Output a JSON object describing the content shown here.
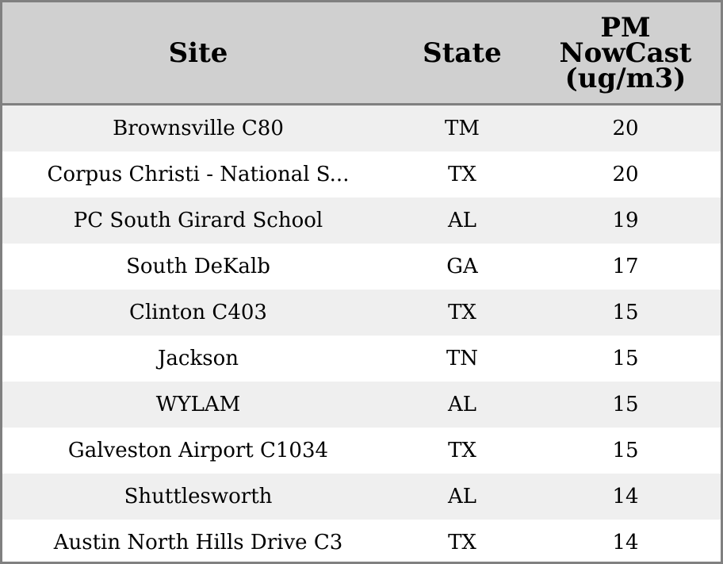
{
  "chart_data": {
    "type": "table",
    "columns": [
      "Site",
      "State",
      "PM\nNowCast\n(ug/m3)"
    ],
    "rows": [
      {
        "site": "Brownsville C80",
        "state": "TM",
        "pm": 20
      },
      {
        "site": "Corpus Christi - National S...",
        "state": "TX",
        "pm": 20
      },
      {
        "site": "PC South Girard School",
        "state": "AL",
        "pm": 19
      },
      {
        "site": "South DeKalb",
        "state": "GA",
        "pm": 17
      },
      {
        "site": "Clinton C403",
        "state": "TX",
        "pm": 15
      },
      {
        "site": "Jackson",
        "state": "TN",
        "pm": 15
      },
      {
        "site": "WYLAM",
        "state": "AL",
        "pm": 15
      },
      {
        "site": "Galveston Airport C1034",
        "state": "TX",
        "pm": 15
      },
      {
        "site": "Shuttlesworth",
        "state": "AL",
        "pm": 14
      },
      {
        "site": "Austin North Hills Drive C3",
        "state": "TX",
        "pm": 14
      }
    ]
  },
  "colors": {
    "header_bg": "#d0d0d0",
    "border": "#808080",
    "row_alt": "#efefef",
    "row_base": "#ffffff"
  }
}
